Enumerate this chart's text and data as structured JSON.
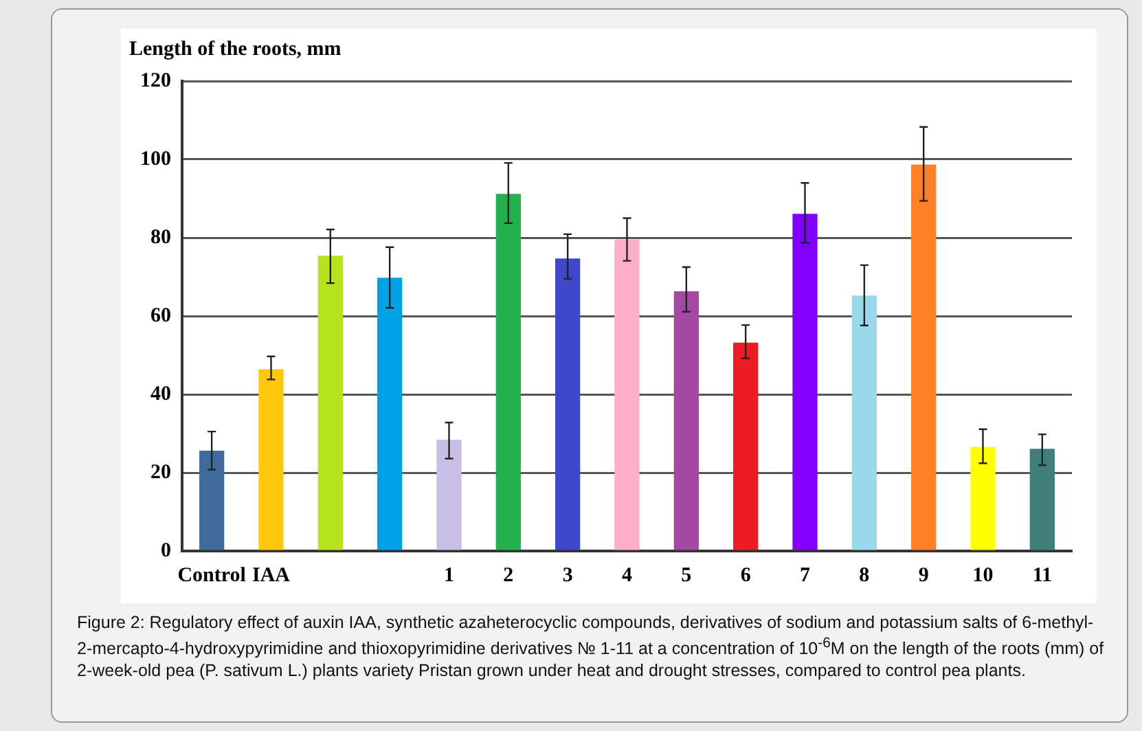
{
  "chart_data": {
    "type": "bar",
    "ylabel": "Length of the roots, mm",
    "categories": [
      "Control",
      "IAA",
      null,
      null,
      "1",
      "2",
      "3",
      "4",
      "5",
      "6",
      "7",
      "8",
      "9",
      "10",
      "11"
    ],
    "values": [
      25.6,
      46.4,
      75.4,
      69.8,
      28.4,
      91.2,
      74.7,
      79.5,
      66.3,
      53.2,
      86.1,
      65.2,
      98.7,
      26.6,
      26.1
    ],
    "colors": [
      "#3f6a9a",
      "#ffc80a",
      "#b5e31c",
      "#00a2e6",
      "#c8bfe6",
      "#22b14c",
      "#3f48cc",
      "#ffaec8",
      "#a349a4",
      "#ed1c24",
      "#8000ff",
      "#99d9ea",
      "#ff7f27",
      "#ffff00",
      "#3f7f7a"
    ],
    "errors": [
      [
        20.8,
        30.5
      ],
      [
        43.8,
        49.7
      ],
      [
        68.4,
        82.1
      ],
      [
        62.1,
        77.6
      ],
      [
        23.6,
        32.8
      ],
      [
        83.7,
        99.1
      ],
      [
        69.5,
        80.9
      ],
      [
        74.1,
        85.0
      ],
      [
        61.1,
        72.5
      ],
      [
        49.2,
        57.7
      ],
      [
        78.7,
        94.0
      ],
      [
        57.6,
        73.0
      ],
      [
        89.4,
        108.3
      ],
      [
        22.4,
        31.1
      ],
      [
        21.9,
        29.8
      ]
    ],
    "ylim": [
      0,
      120
    ],
    "yticks": [
      0,
      20,
      40,
      60,
      80,
      100,
      120
    ],
    "grid": "y",
    "legend": false,
    "annotations": [
      "Figure 2: Regulatory effect of auxin IAA, synthetic azaheterocyclic compounds, derivatives of sodium and potassium salts of 6-methyl-2-mercapto-4-hydroxypyrimidine and thioxopyrimidine derivatives № 1-11 at a concentration of 10$^{-6}$M on the length of the roots (mm) of 2-week-old pea (P. sativum L.) plants variety Pristan grown under heat and drought stresses, compared to control pea plants."
    ]
  }
}
